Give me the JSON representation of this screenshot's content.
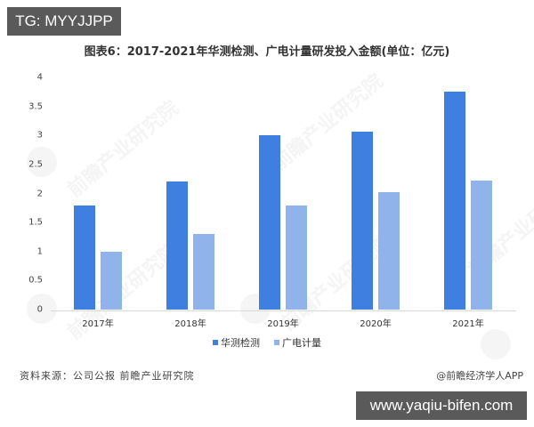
{
  "badges": {
    "top_left": "TG: MYYJJPP",
    "bottom_right": "www.yaqiu-bifen.com"
  },
  "watermark": "前瞻产业研究院",
  "footer": {
    "source": "资料来源：公司公报 前瞻产业研究院",
    "credit": "@前瞻经济学人APP"
  },
  "colors": {
    "series_1": "#3f7fe0",
    "series_2": "#8fb3ea",
    "badge_bg": "#5a5a5a"
  },
  "chart_data": {
    "type": "bar",
    "title": "图表6：2017-2021年华测检测、广电计量研发投入金额(单位：亿元)",
    "xlabel": "",
    "ylabel": "",
    "ylim": [
      0,
      4
    ],
    "yticks": [
      "0",
      "0.5",
      "1",
      "1.5",
      "2",
      "2.5",
      "3",
      "3.5",
      "4"
    ],
    "categories": [
      "2017年",
      "2018年",
      "2019年",
      "2020年",
      "2021年"
    ],
    "series": [
      {
        "name": "华测检测",
        "values": [
          1.8,
          2.2,
          3.0,
          3.07,
          3.76
        ]
      },
      {
        "name": "广电计量",
        "values": [
          1.0,
          1.3,
          1.8,
          2.03,
          2.22
        ]
      }
    ],
    "grid": false,
    "legend_position": "bottom"
  }
}
